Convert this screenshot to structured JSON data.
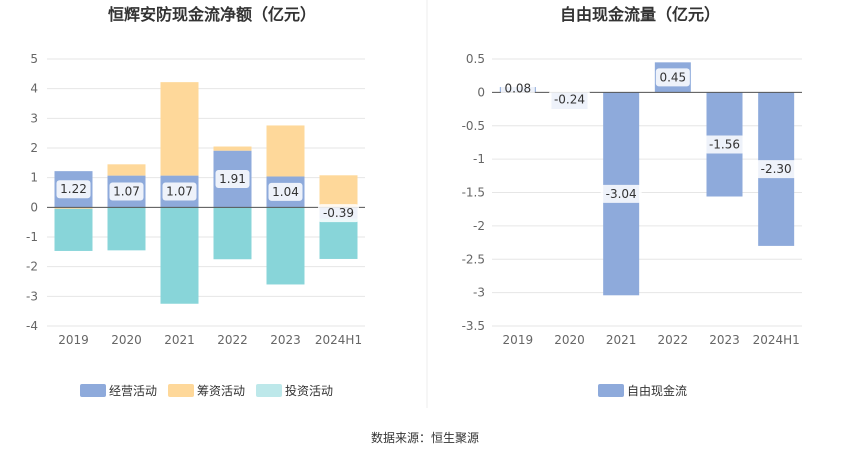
{
  "colors": {
    "operating": "#8eaadb",
    "financing": "#fed89a",
    "investing": "#88d5d9",
    "fcf": "#8eaadb",
    "investing_legend": "#bde8ea",
    "grid": "#e6e6e6",
    "axis_text": "#666666",
    "title_text": "#333333",
    "label_text": "#333333"
  },
  "source_text": "数据来源：恒生聚源",
  "chart_data": [
    {
      "type": "bar",
      "stacked": true,
      "title": "恒辉安防现金流净额（亿元）",
      "categories": [
        "2019",
        "2020",
        "2021",
        "2022",
        "2023",
        "2024H1"
      ],
      "ylim": [
        -4,
        5
      ],
      "yticks": [
        "5",
        "4",
        "3",
        "2",
        "1",
        "0",
        "-1",
        "-2",
        "-3",
        "-4"
      ],
      "grid": true,
      "legend_position": "bottom",
      "series": [
        {
          "name": "经营活动",
          "values": [
            1.22,
            1.07,
            1.07,
            1.91,
            1.04,
            -0.39
          ],
          "labels": [
            "1.22",
            "1.07",
            "1.07",
            "1.91",
            "1.04",
            "-0.39"
          ]
        },
        {
          "name": "筹资活动",
          "values": [
            -0.05,
            0.38,
            3.15,
            0.14,
            1.72,
            1.08
          ]
        },
        {
          "name": "投资活动",
          "values": [
            -1.42,
            -1.45,
            -3.25,
            -1.75,
            -2.6,
            -1.35
          ]
        }
      ]
    },
    {
      "type": "bar",
      "title": "自由现金流量（亿元）",
      "categories": [
        "2019",
        "2020",
        "2021",
        "2022",
        "2023",
        "2024H1"
      ],
      "ylim": [
        -3.5,
        0.5
      ],
      "yticks": [
        "0.5",
        "0",
        "-0.5",
        "-1",
        "-1.5",
        "-2",
        "-2.5",
        "-3",
        "-3.5"
      ],
      "grid": true,
      "legend_position": "bottom",
      "series": [
        {
          "name": "自由现金流",
          "values": [
            0.08,
            -0.24,
            -3.04,
            0.45,
            -1.56,
            -2.3
          ],
          "labels": [
            "0.08",
            "-0.24",
            "-3.04",
            "0.45",
            "-1.56",
            "-2.30"
          ]
        }
      ]
    }
  ]
}
